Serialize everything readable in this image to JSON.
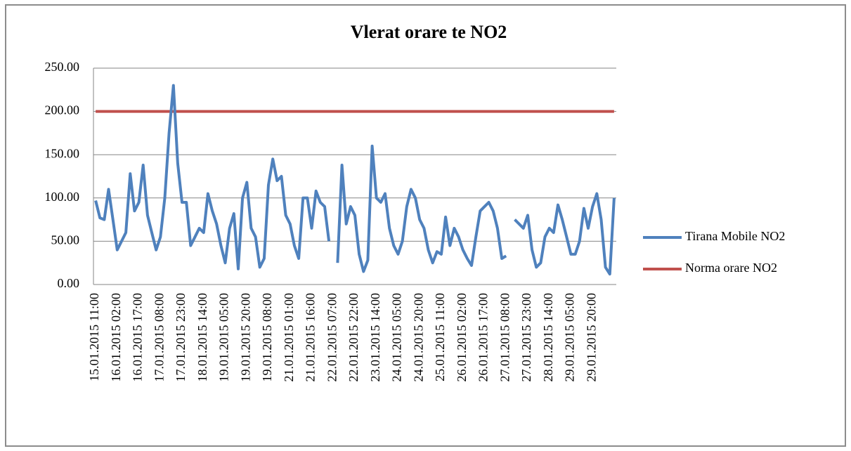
{
  "chart_data": {
    "type": "line",
    "title": "Vlerat orare te NO2",
    "categories": [
      "15.01.2015 11:00",
      null,
      null,
      null,
      null,
      "16.01.2015 02:00",
      null,
      null,
      null,
      null,
      "16.01.2015 17:00",
      null,
      null,
      null,
      null,
      "17.01.2015 08:00",
      null,
      null,
      null,
      null,
      "17.01.2015 23:00",
      null,
      null,
      null,
      null,
      "18.01.2015 14:00",
      null,
      null,
      null,
      null,
      "19.01.2015 05:00",
      null,
      null,
      null,
      null,
      "19.01.2015 20:00",
      null,
      null,
      null,
      null,
      "19.01.2015 08:00",
      null,
      null,
      null,
      null,
      "21.01.2015 01:00",
      null,
      null,
      null,
      null,
      "21.01.2015 16:00",
      null,
      null,
      null,
      null,
      "22.01.2015 07:00",
      null,
      null,
      null,
      null,
      "22.01.2015 22:00",
      null,
      null,
      null,
      null,
      "23.01.2015 14:00",
      null,
      null,
      null,
      null,
      "24.01.2015 05:00",
      null,
      null,
      null,
      null,
      "24.01.2015 20:00",
      null,
      null,
      null,
      null,
      "25.01.2015 11:00",
      null,
      null,
      null,
      null,
      "26.01.2015 02:00",
      null,
      null,
      null,
      null,
      "26.01.2015 17:00",
      null,
      null,
      null,
      null,
      "27.01.2015 08:00",
      null,
      null,
      null,
      null,
      "27.01.2015 23:00",
      null,
      null,
      null,
      null,
      "28.01.2015 14:00",
      null,
      null,
      null,
      null,
      "29.01.2015 05:00",
      null,
      null,
      null,
      null,
      "29.01.2015 20:00",
      null,
      null,
      null,
      null,
      null
    ],
    "series": [
      {
        "name": "Tirana Mobile NO2",
        "color": "#4f81bd",
        "values": [
          97,
          77,
          75,
          110,
          75,
          40,
          50,
          60,
          128,
          85,
          95,
          138,
          80,
          60,
          40,
          55,
          100,
          175,
          230,
          140,
          95,
          95,
          45,
          55,
          65,
          60,
          105,
          85,
          70,
          45,
          25,
          65,
          82,
          18,
          100,
          118,
          65,
          55,
          20,
          30,
          115,
          145,
          120,
          125,
          80,
          70,
          45,
          30,
          100,
          100,
          65,
          108,
          95,
          90,
          50,
          null,
          25,
          138,
          70,
          90,
          80,
          35,
          15,
          28,
          160,
          100,
          95,
          105,
          65,
          45,
          35,
          50,
          90,
          110,
          100,
          75,
          65,
          40,
          25,
          38,
          35,
          78,
          45,
          65,
          55,
          40,
          30,
          22,
          55,
          85,
          90,
          95,
          85,
          65,
          30,
          33,
          null,
          75,
          70,
          65,
          80,
          40,
          20,
          25,
          55,
          65,
          60,
          92,
          75,
          55,
          35,
          35,
          50,
          88,
          65,
          90,
          105,
          75,
          20,
          12,
          100
        ]
      },
      {
        "name": "Norma orare NO2",
        "color": "#c0504d",
        "values": [
          200,
          200,
          200,
          200,
          200,
          200,
          200,
          200,
          200,
          200,
          200,
          200,
          200,
          200,
          200,
          200,
          200,
          200,
          200,
          200,
          200,
          200,
          200,
          200,
          200,
          200,
          200,
          200,
          200,
          200,
          200,
          200,
          200,
          200,
          200,
          200,
          200,
          200,
          200,
          200,
          200,
          200,
          200,
          200,
          200,
          200,
          200,
          200,
          200,
          200,
          200,
          200,
          200,
          200,
          200,
          200,
          200,
          200,
          200,
          200,
          200,
          200,
          200,
          200,
          200,
          200,
          200,
          200,
          200,
          200,
          200,
          200,
          200,
          200,
          200,
          200,
          200,
          200,
          200,
          200,
          200,
          200,
          200,
          200,
          200,
          200,
          200,
          200,
          200,
          200,
          200,
          200,
          200,
          200,
          200,
          200,
          200,
          200,
          200,
          200,
          200,
          200,
          200,
          200,
          200,
          200,
          200,
          200,
          200,
          200,
          200,
          200,
          200,
          200,
          200,
          200,
          200,
          200,
          200,
          200,
          200
        ]
      }
    ],
    "ylim": [
      0,
      250
    ],
    "yticks": [
      {
        "value": 0,
        "label": "0.00"
      },
      {
        "value": 50,
        "label": "50.00"
      },
      {
        "value": 100,
        "label": "100.00"
      },
      {
        "value": 150,
        "label": "150.00"
      },
      {
        "value": 200,
        "label": "200.00"
      },
      {
        "value": 250,
        "label": "250.00"
      }
    ],
    "grid": true,
    "legend": "right"
  }
}
